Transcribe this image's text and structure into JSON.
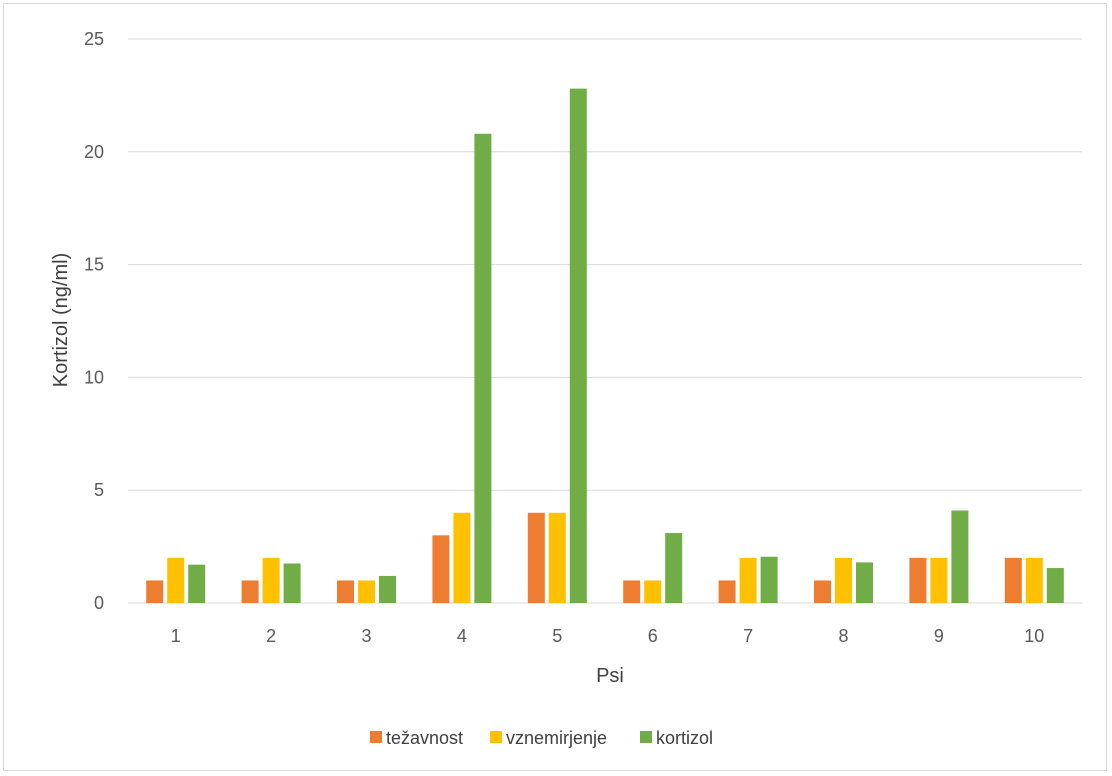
{
  "chart_data": {
    "type": "bar",
    "title": "",
    "xlabel": "Psi",
    "ylabel": "Kortizol (ng/ml)",
    "categories": [
      "1",
      "2",
      "3",
      "4",
      "5",
      "6",
      "7",
      "8",
      "9",
      "10"
    ],
    "ylim": [
      0,
      25
    ],
    "yticks": [
      0,
      5,
      10,
      15,
      20,
      25
    ],
    "grid": true,
    "legend_position": "bottom",
    "series": [
      {
        "name": "težavnost",
        "color": "#ED7D31",
        "values": [
          1,
          1,
          1,
          3,
          4,
          1,
          1,
          1,
          2,
          2
        ]
      },
      {
        "name": "vznemirjenje",
        "color": "#FFC000",
        "values": [
          2,
          2,
          1,
          4,
          4,
          1,
          2,
          2,
          2,
          2
        ]
      },
      {
        "name": "kortizol",
        "color": "#70AD47",
        "values": [
          1.7,
          1.75,
          1.2,
          20.8,
          22.8,
          3.1,
          2.05,
          1.8,
          4.1,
          1.55
        ]
      }
    ]
  }
}
